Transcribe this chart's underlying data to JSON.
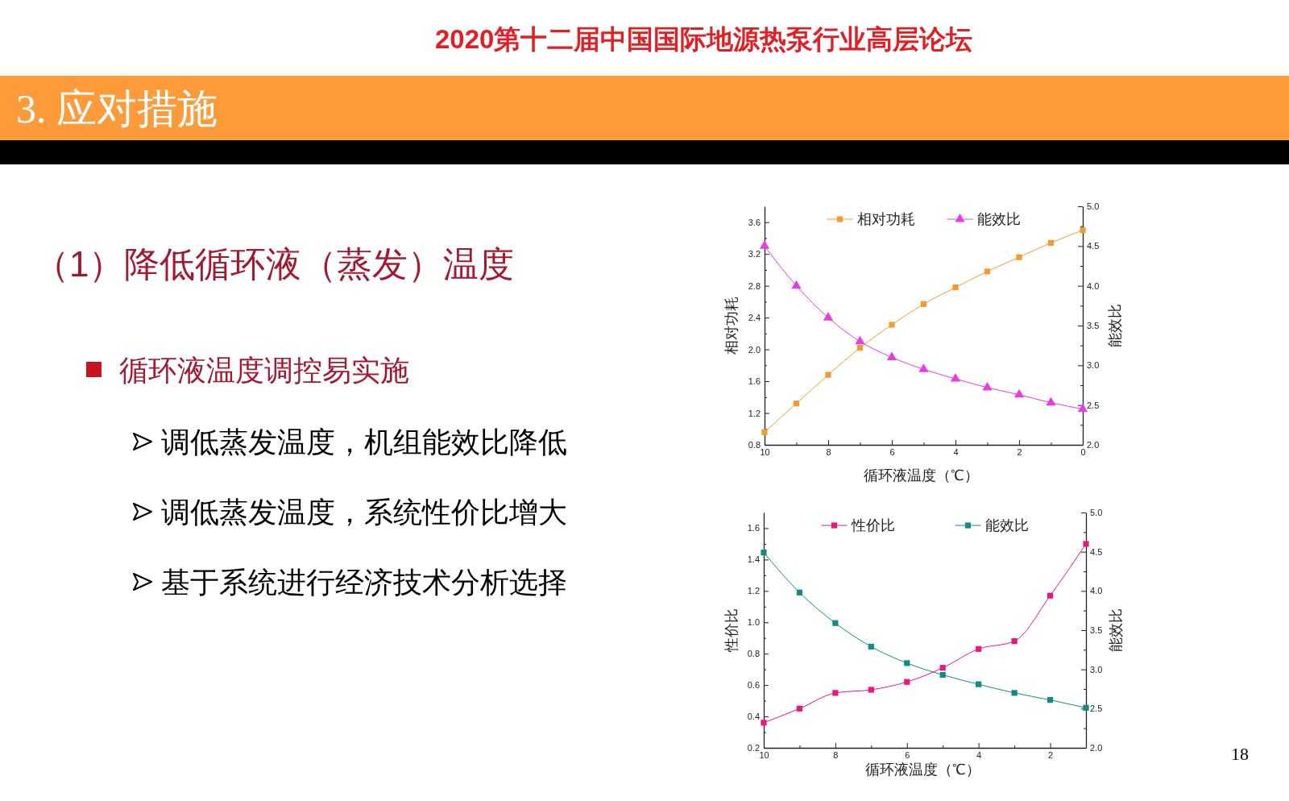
{
  "chart_data": [
    {
      "type": "other",
      "title": "3. 应对措施",
      "subtitle": "（1）降低循环液（蒸发）温度",
      "annotations": [
        "2020第十二届中国国际地源热泵行业高层论坛",
        "循环液温度调控易实施",
        "调低蒸发温度，机组能效比降低",
        "调低蒸发温度，系统性价比增大",
        "基于系统进行经济技术分析选择",
        "18"
      ]
    },
    {
      "type": "line",
      "xlabel": "循环液温度（℃）",
      "ylabel": "相对功耗",
      "y2label": "能效比",
      "x": [
        10,
        9,
        8,
        7,
        6,
        5,
        4,
        3,
        2,
        1,
        0
      ],
      "xlim": [
        10,
        0
      ],
      "xticks": [
        10,
        {
          "value": 9,
          "label": null
        },
        8,
        {
          "value": 7,
          "label": null
        },
        6,
        {
          "value": 5,
          "label": null
        },
        4,
        {
          "value": 3,
          "label": null
        },
        2,
        {
          "value": 1,
          "label": null
        },
        0
      ],
      "ylim": [
        0.8,
        3.8
      ],
      "yticks": [
        0.8,
        {
          "value": 1,
          "label": null
        },
        1.2,
        {
          "value": 1.4,
          "label": null
        },
        1.6,
        {
          "value": 1.8,
          "label": null
        },
        {
          "value": 2,
          "label": "2.0"
        },
        {
          "value": 2.2,
          "label": null
        },
        2.4,
        {
          "value": 2.6,
          "label": null
        },
        2.8,
        {
          "value": 3,
          "label": null
        },
        3.2,
        {
          "value": 3.4,
          "label": null
        },
        3.6
      ],
      "y2lim": [
        2,
        5
      ],
      "y2ticks": [
        {
          "value": 2,
          "label": "2.0"
        },
        {
          "value": 2.25,
          "label": null
        },
        2.5,
        {
          "value": 2.75,
          "label": null
        },
        {
          "value": 3,
          "label": "3.0"
        },
        {
          "value": 3.25,
          "label": null
        },
        3.5,
        {
          "value": 3.75,
          "label": null
        },
        {
          "value": 4,
          "label": "4.0"
        },
        {
          "value": 4.25,
          "label": null
        },
        4.5,
        {
          "value": 4.75,
          "label": null
        },
        {
          "value": 5,
          "label": "5.0"
        }
      ],
      "legend": "top",
      "line_style": "solid",
      "series": [
        {
          "name": "相对功耗",
          "color": "#f39a33",
          "marker": "square",
          "values": [
            0.96,
            1.32,
            1.68,
            2.02,
            2.31,
            2.57,
            2.78,
            2.98,
            3.16,
            3.34,
            3.5
          ]
        },
        {
          "name": "能效比",
          "color": "#e63be6",
          "marker": "triangle",
          "axis": "y2",
          "values": [
            4.5,
            4.0,
            3.6,
            3.3,
            3.1,
            2.95,
            2.83,
            2.72,
            2.63,
            2.53,
            2.45
          ]
        }
      ]
    },
    {
      "type": "line",
      "xlabel": "循环液温度（℃）",
      "ylabel": "性价比",
      "y2label": "能效比",
      "x": [
        10,
        9,
        8,
        7,
        6,
        5,
        4,
        3,
        2,
        1
      ],
      "xlim": [
        10,
        1
      ],
      "xticks": [
        10,
        {
          "value": 9,
          "label": null
        },
        8,
        {
          "value": 7,
          "label": null
        },
        6,
        {
          "value": 5,
          "label": null
        },
        4,
        {
          "value": 3,
          "label": null
        },
        2
      ],
      "ylim": [
        0.2,
        1.7
      ],
      "yticks": [
        0.2,
        {
          "value": 0.3,
          "label": null
        },
        0.4,
        {
          "value": 0.5,
          "label": null
        },
        0.6,
        {
          "value": 0.7,
          "label": null
        },
        0.8,
        {
          "value": 0.9,
          "label": null
        },
        {
          "value": 1,
          "label": "1.0"
        },
        {
          "value": 1.1,
          "label": null
        },
        1.2,
        {
          "value": 1.3,
          "label": null
        },
        1.4,
        {
          "value": 1.5,
          "label": null
        },
        1.6
      ],
      "y2lim": [
        2,
        5
      ],
      "y2ticks": [
        {
          "value": 2,
          "label": "2.0"
        },
        {
          "value": 2.25,
          "label": null
        },
        2.5,
        {
          "value": 2.75,
          "label": null
        },
        {
          "value": 3,
          "label": "3.0"
        },
        {
          "value": 3.25,
          "label": null
        },
        3.5,
        {
          "value": 3.75,
          "label": null
        },
        {
          "value": 4,
          "label": "4.0"
        },
        {
          "value": 4.25,
          "label": null
        },
        4.5,
        {
          "value": 4.75,
          "label": null
        },
        {
          "value": 5,
          "label": "5.0"
        }
      ],
      "legend": "top",
      "line_style": "solid",
      "series": [
        {
          "name": "性价比",
          "color": "#e8197d",
          "marker": "square",
          "values": [
            0.36,
            0.45,
            0.55,
            0.57,
            0.62,
            0.71,
            0.83,
            0.88,
            1.17,
            1.5
          ]
        },
        {
          "name": "能效比",
          "color": "#138a86",
          "marker": "square",
          "axis": "y2",
          "values": [
            4.49,
            3.98,
            3.59,
            3.29,
            3.08,
            2.93,
            2.81,
            2.7,
            2.61,
            2.51
          ]
        }
      ]
    }
  ]
}
